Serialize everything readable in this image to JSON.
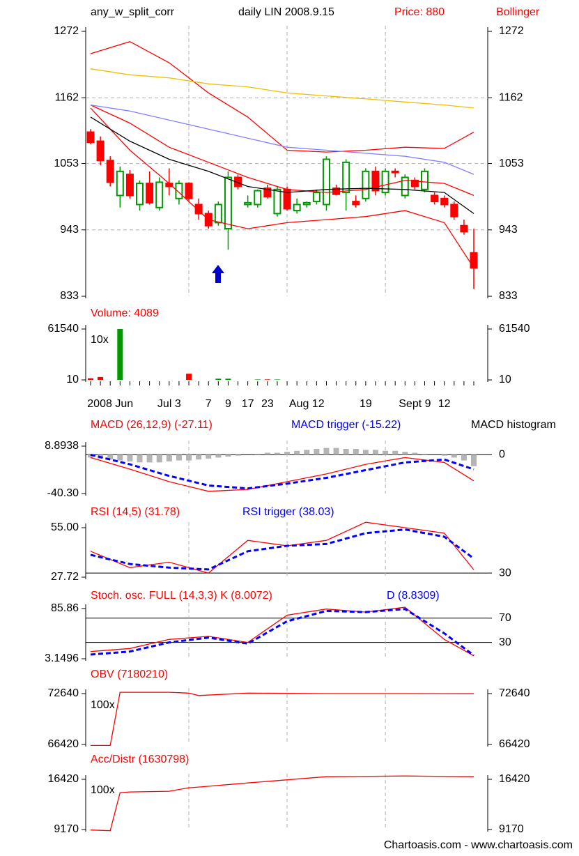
{
  "chart_data": [
    {
      "type": "candlestick",
      "title": "any_w_split_corr",
      "subtitle": "daily LIN 2008.9.15",
      "price_label": "Price: 880",
      "indicator_label": "Bollinger",
      "categories": [
        null,
        null,
        "2008 Jun",
        null,
        null,
        null,
        null,
        null,
        "Jul 3",
        null,
        null,
        null,
        "7",
        null,
        "9",
        null,
        "17",
        null,
        "23",
        null,
        null,
        null,
        "Aug 12",
        null,
        null,
        null,
        null,
        null,
        "19",
        null,
        null,
        null,
        null,
        "Sept 9",
        null,
        null,
        "12",
        null,
        null,
        null
      ],
      "open": [
        1105,
        1090,
        1058,
        1000,
        1035,
        985,
        1020,
        980,
        1020,
        995,
        1020,
        985,
        970,
        955,
        945,
        1030,
        985,
        985,
        1012,
        970,
        1010,
        975,
        985,
        990,
        985,
        1012,
        1005,
        990,
        995,
        1040,
        1005,
        1040,
        1000,
        1025,
        1010,
        1000,
        995,
        985,
        950,
        905
      ],
      "high": [
        1110,
        1098,
        1065,
        1048,
        1042,
        1025,
        1040,
        1030,
        1045,
        1025,
        1022,
        995,
        975,
        990,
        1040,
        1035,
        1000,
        1010,
        1018,
        1015,
        1015,
        995,
        990,
        1010,
        1065,
        1018,
        1060,
        1000,
        1045,
        1048,
        1045,
        1045,
        1035,
        1030,
        1045,
        1005,
        1000,
        990,
        960,
        945
      ],
      "low": [
        1085,
        1050,
        1015,
        980,
        995,
        975,
        985,
        975,
        1000,
        985,
        990,
        960,
        945,
        950,
        910,
        1010,
        980,
        980,
        995,
        965,
        975,
        970,
        980,
        985,
        975,
        1000,
        975,
        980,
        990,
        1000,
        1000,
        1030,
        995,
        1010,
        1005,
        985,
        980,
        960,
        935,
        845
      ],
      "close": [
        1088,
        1058,
        1022,
        1040,
        1000,
        1020,
        988,
        1022,
        1015,
        1020,
        995,
        970,
        950,
        985,
        1030,
        1015,
        988,
        1008,
        998,
        1010,
        978,
        985,
        988,
        1005,
        1060,
        1002,
        1055,
        985,
        1040,
        1008,
        1040,
        1038,
        1030,
        1015,
        1040,
        990,
        985,
        965,
        940,
        880
      ],
      "up_color": "#009900",
      "down_color": "#ff0000",
      "x": [
        0,
        4,
        8,
        12,
        16,
        20,
        24,
        28,
        32,
        36,
        39
      ],
      "series": [
        {
          "color": "#ff0000",
          "values": [
            1235,
            1255,
            1220,
            1170,
            1130,
            1075,
            1072,
            1075,
            1080,
            1078,
            1105
          ]
        },
        {
          "color": "#ff0000",
          "values": [
            1145,
            1075,
            1020,
            960,
            945,
            955,
            960,
            965,
            975,
            955,
            880
          ]
        },
        {
          "color": "#ff0000",
          "values": [
            1150,
            1120,
            1080,
            1055,
            1030,
            1010,
            1005,
            1010,
            1025,
            1020,
            1000
          ]
        },
        {
          "color": "#000000",
          "values": [
            1130,
            1090,
            1060,
            1040,
            1015,
            1005,
            1010,
            1012,
            1010,
            1005,
            970
          ]
        },
        {
          "color": "#8080ff",
          "values": [
            1150,
            1140,
            1125,
            1110,
            1095,
            1080,
            1075,
            1070,
            1065,
            1055,
            1035
          ]
        },
        {
          "color": "#f0c000",
          "values": [
            1210,
            1200,
            1195,
            1185,
            1180,
            1170,
            1165,
            1160,
            1155,
            1150,
            1145
          ]
        }
      ],
      "ylim": [
        833,
        1272
      ],
      "yticks": [
        833,
        943,
        1053,
        1162,
        1272
      ],
      "grid": true,
      "xgrid": [
        10,
        20,
        30
      ],
      "right_axis": true
    },
    {
      "type": "bar",
      "title": "Volume: 4089",
      "multiplier": "10x",
      "values": [
        2000,
        3500,
        0,
        61540,
        0,
        0,
        0,
        0,
        0,
        0,
        7500,
        0,
        0,
        1500,
        1500,
        0,
        0,
        500,
        600,
        500,
        0,
        0,
        0,
        0,
        0,
        0,
        0,
        0,
        0,
        0,
        0,
        0,
        0,
        0,
        0,
        0,
        0,
        0,
        0,
        0
      ],
      "ylim": [
        10,
        61540
      ],
      "yticks": [
        10,
        61540
      ],
      "right_axis": true
    },
    {
      "type": "line",
      "x": [
        0,
        4,
        8,
        12,
        16,
        20,
        24,
        28,
        32,
        36,
        39
      ],
      "series": [
        {
          "name": "MACD (26,12,9) (-27.11)",
          "color": "#ff0000",
          "values": [
            -3,
            -15,
            -28,
            -38,
            -36,
            -28,
            -20,
            -10,
            -3,
            -8,
            -27.11
          ]
        },
        {
          "name": "MACD trigger (-15.22)",
          "color": "#0000ff",
          "dash": true,
          "values": [
            0,
            -10,
            -22,
            -32,
            -35,
            -30,
            -24,
            -16,
            -8,
            -5,
            -15.22
          ]
        }
      ],
      "histogram": {
        "name": "MACD histogram",
        "color": "#b4b4b4",
        "values": [
          -3,
          -4,
          -5,
          -6,
          -7,
          -8,
          -8,
          -8,
          -7,
          -6,
          -6,
          -5,
          -4,
          -3,
          -2,
          -1,
          0,
          1,
          2,
          2,
          3,
          4,
          5,
          6,
          7,
          7,
          6,
          6,
          5,
          5,
          4,
          4,
          3,
          2,
          1,
          0,
          -1,
          -3,
          -6,
          -11.89
        ]
      },
      "ylim": [
        -40.3,
        8.8938
      ],
      "yticks": [
        {
          "value": -40.3,
          "label": "-40.30"
        },
        8.8938
      ],
      "ref_lines": [
        0
      ]
    },
    {
      "type": "line",
      "x": [
        0,
        4,
        8,
        12,
        16,
        20,
        24,
        28,
        32,
        36,
        39
      ],
      "series": [
        {
          "name": "RSI (14,5) (31.78)",
          "color": "#ff0000",
          "values": [
            42,
            33,
            36,
            30,
            48,
            45,
            48,
            58,
            55,
            52,
            31.78
          ]
        },
        {
          "name": "RSI trigger (38.03)",
          "color": "#0000ff",
          "dash": true,
          "values": [
            40,
            35,
            33,
            32,
            42,
            45,
            46,
            52,
            54,
            50,
            38.03
          ]
        }
      ],
      "ylim": [
        27.72,
        55
      ],
      "yticks": [
        27.72,
        {
          "value": 55,
          "label": "55.00"
        }
      ],
      "ref_lines": [
        30
      ]
    },
    {
      "type": "line",
      "x": [
        0,
        4,
        8,
        12,
        16,
        20,
        24,
        28,
        32,
        36,
        39
      ],
      "series": [
        {
          "name": "Stoch. osc. FULL (14,3,3) K (8.0072)",
          "color": "#ff0000",
          "values": [
            15,
            20,
            35,
            40,
            30,
            75,
            85,
            80,
            88,
            35,
            8.0072
          ]
        },
        {
          "name": "D (8.8309)",
          "color": "#0000ff",
          "dash": true,
          "values": [
            10,
            15,
            30,
            38,
            28,
            65,
            82,
            80,
            85,
            45,
            8.8309
          ]
        }
      ],
      "ylim": [
        3.1496,
        85.86
      ],
      "yticks": [
        3.1496,
        85.86
      ],
      "ref_lines": [
        70,
        30
      ]
    },
    {
      "type": "line",
      "title": "OBV (7180210)",
      "multiplier": "100x",
      "x": [
        0,
        2,
        3,
        4,
        8,
        10,
        11,
        16,
        24,
        32,
        39
      ],
      "series": [
        {
          "color": "#ff0000",
          "values": [
            66300,
            66300,
            72800,
            72800,
            72800,
            72700,
            72400,
            72700,
            72640,
            72640,
            72620
          ]
        }
      ],
      "ylim": [
        66420,
        72640
      ],
      "yticks": [
        66420,
        72640
      ],
      "right_axis": true
    },
    {
      "type": "line",
      "title": "Acc/Distr (1630798)",
      "multiplier": "100x",
      "x": [
        0,
        2,
        3,
        4,
        8,
        10,
        11,
        16,
        24,
        32,
        39
      ],
      "series": [
        {
          "color": "#ff0000",
          "values": [
            9100,
            9000,
            14500,
            14600,
            14700,
            15200,
            15300,
            15900,
            16800,
            16900,
            16800
          ]
        }
      ],
      "ylim": [
        9170,
        16420
      ],
      "yticks": [
        9170,
        16420
      ],
      "right_axis": true
    }
  ],
  "footer": "Chartoasis.com - www.chartoasis.com"
}
